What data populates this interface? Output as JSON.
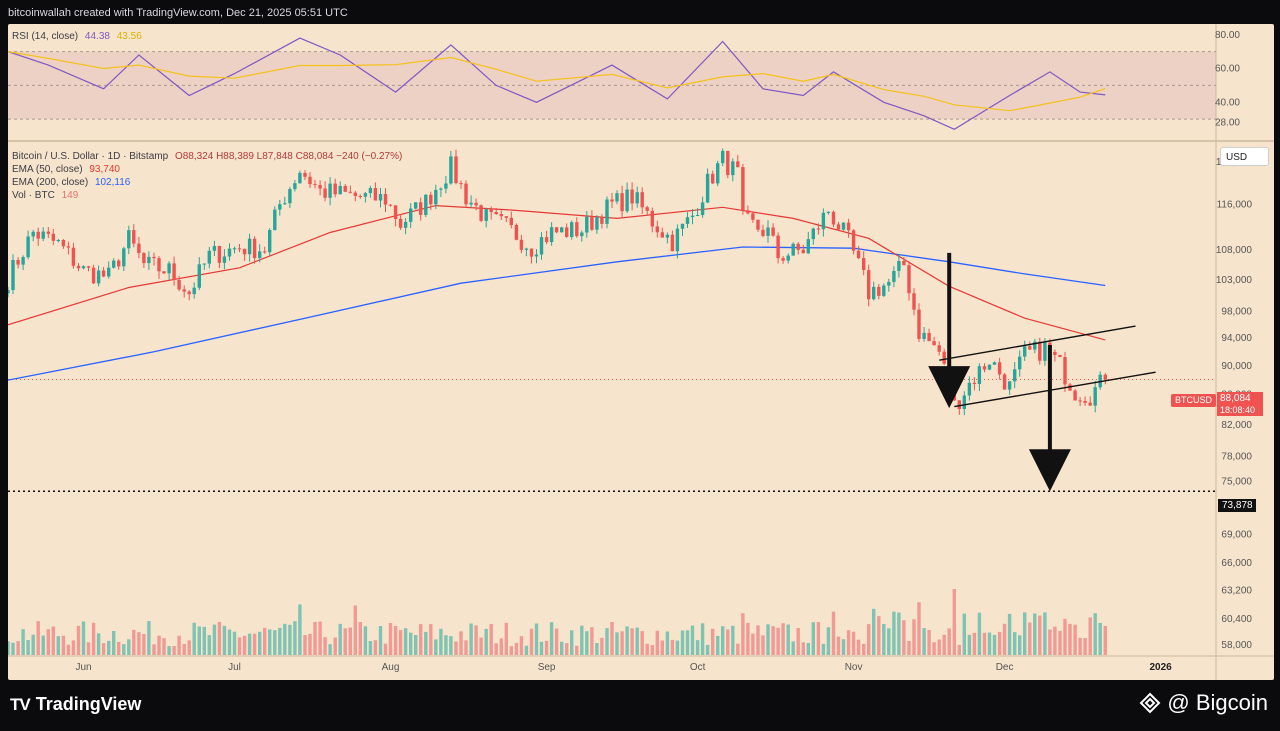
{
  "header": {
    "credit": "bitcoinwallah created with TradingView.com, Dec 21, 2025 05:51 UTC"
  },
  "rsi_legend": {
    "label": "RSI (14, close)",
    "value": "44.38",
    "ma": "43.56"
  },
  "main_legend": {
    "title": "Bitcoin / U.S. Dollar · 1D · Bitstamp",
    "ohlc": "O88,324  H88,389  L87,848  C88,084  −240 (−0.27%)",
    "ema50_label": "EMA (50, close)",
    "ema50_value": "93,740",
    "ema200_label": "EMA (200, close)",
    "ema200_value": "102,116",
    "vol_label": "Vol · BTC",
    "vol_value": "149"
  },
  "currency_button": "USD",
  "price_badge": {
    "symbol": "BTCUSD",
    "price": "88,084",
    "countdown": "18:08:40"
  },
  "target_badge": "73,878",
  "footer": {
    "platform": "TradingView",
    "source": "@ Bigcoin"
  },
  "colors": {
    "up": "#26a69a",
    "down": "#ef5350",
    "ema50": "#e53935",
    "ema200": "#2962ff",
    "rsi": "#7e57c2",
    "rsi_ma": "#f4c21b",
    "bg": "#f7e4cc"
  },
  "chart_data": {
    "type": "candlestick",
    "symbol": "BTCUSD",
    "interval": "1D",
    "x_range": [
      "2025-05-17",
      "2026-01-12"
    ],
    "price_axis_ticks": [
      124000,
      116000,
      108000,
      103000,
      98000,
      94000,
      90000,
      86000,
      82000,
      78000,
      75000,
      72000,
      69000,
      66000,
      63200,
      60400,
      58000
    ],
    "rsi_axis_ticks": [
      80,
      60,
      40,
      28
    ],
    "rsi_bands": [
      30,
      50,
      70
    ],
    "time_axis": [
      "Jun",
      "Jul",
      "Aug",
      "Sep",
      "Oct",
      "Nov",
      "Dec",
      "2026"
    ],
    "log_scale": true,
    "target_level": 73878,
    "last_close": 88084,
    "ema50_last": 93740,
    "ema200_last": 102116,
    "rsi_last": 44.38,
    "rsi_ma_last": 43.56,
    "price_path": [
      [
        "2025-05-17",
        103200
      ],
      [
        "2025-05-22",
        111000
      ],
      [
        "2025-05-27",
        109000
      ],
      [
        "2025-06-01",
        104500
      ],
      [
        "2025-06-06",
        103500
      ],
      [
        "2025-06-10",
        109800
      ],
      [
        "2025-06-13",
        105500
      ],
      [
        "2025-06-18",
        104500
      ],
      [
        "2025-06-22",
        101000
      ],
      [
        "2025-06-26",
        107000
      ],
      [
        "2025-07-02",
        108500
      ],
      [
        "2025-07-07",
        108200
      ],
      [
        "2025-07-10",
        116000
      ],
      [
        "2025-07-14",
        122500
      ],
      [
        "2025-07-18",
        118500
      ],
      [
        "2025-07-25",
        117500
      ],
      [
        "2025-07-31",
        117000
      ],
      [
        "2025-08-03",
        112500
      ],
      [
        "2025-08-08",
        116500
      ],
      [
        "2025-08-13",
        123000
      ],
      [
        "2025-08-16",
        117500
      ],
      [
        "2025-08-20",
        113500
      ],
      [
        "2025-08-24",
        112000
      ],
      [
        "2025-08-29",
        108500
      ],
      [
        "2025-09-02",
        111000
      ],
      [
        "2025-09-08",
        111500
      ],
      [
        "2025-09-14",
        116000
      ],
      [
        "2025-09-18",
        117500
      ],
      [
        "2025-09-22",
        113000
      ],
      [
        "2025-09-26",
        109500
      ],
      [
        "2025-09-30",
        114000
      ],
      [
        "2025-10-03",
        120000
      ],
      [
        "2025-10-06",
        124500
      ],
      [
        "2025-10-09",
        121500
      ],
      [
        "2025-10-10",
        113000
      ],
      [
        "2025-10-15",
        111000
      ],
      [
        "2025-10-17",
        107000
      ],
      [
        "2025-10-22",
        108000
      ],
      [
        "2025-10-27",
        115000
      ],
      [
        "2025-10-31",
        109500
      ],
      [
        "2025-11-04",
        101000
      ],
      [
        "2025-11-08",
        102500
      ],
      [
        "2025-11-11",
        105500
      ],
      [
        "2025-11-14",
        95000
      ],
      [
        "2025-11-18",
        92000
      ],
      [
        "2025-11-21",
        84500
      ],
      [
        "2025-11-24",
        87500
      ],
      [
        "2025-11-28",
        91000
      ],
      [
        "2025-12-02",
        87000
      ],
      [
        "2025-12-05",
        91500
      ],
      [
        "2025-12-09",
        92500
      ],
      [
        "2025-12-12",
        90000
      ],
      [
        "2025-12-15",
        86500
      ],
      [
        "2025-12-18",
        86000
      ],
      [
        "2025-12-21",
        88084
      ]
    ],
    "ema50_path": [
      [
        "2025-05-17",
        96000
      ],
      [
        "2025-06-10",
        101800
      ],
      [
        "2025-07-02",
        105000
      ],
      [
        "2025-07-20",
        111000
      ],
      [
        "2025-08-10",
        115800
      ],
      [
        "2025-08-25",
        115000
      ],
      [
        "2025-09-15",
        113500
      ],
      [
        "2025-10-06",
        115500
      ],
      [
        "2025-10-20",
        113500
      ],
      [
        "2025-11-04",
        110000
      ],
      [
        "2025-11-20",
        102000
      ],
      [
        "2025-12-05",
        97000
      ],
      [
        "2025-12-21",
        93740
      ]
    ],
    "ema200_path": [
      [
        "2025-05-17",
        88000
      ],
      [
        "2025-06-15",
        92000
      ],
      [
        "2025-07-15",
        97000
      ],
      [
        "2025-08-15",
        102500
      ],
      [
        "2025-09-15",
        106000
      ],
      [
        "2025-10-10",
        108500
      ],
      [
        "2025-11-01",
        108300
      ],
      [
        "2025-11-20",
        106000
      ],
      [
        "2025-12-05",
        104000
      ],
      [
        "2025-12-21",
        102116
      ]
    ],
    "rsi_path": [
      [
        "2025-05-17",
        70
      ],
      [
        "2025-05-25",
        62
      ],
      [
        "2025-06-05",
        48
      ],
      [
        "2025-06-12",
        68
      ],
      [
        "2025-06-22",
        44
      ],
      [
        "2025-07-01",
        57
      ],
      [
        "2025-07-14",
        78
      ],
      [
        "2025-07-22",
        68
      ],
      [
        "2025-08-02",
        46
      ],
      [
        "2025-08-13",
        74
      ],
      [
        "2025-08-22",
        50
      ],
      [
        "2025-08-30",
        40
      ],
      [
        "2025-09-14",
        62
      ],
      [
        "2025-09-25",
        42
      ],
      [
        "2025-10-06",
        76
      ],
      [
        "2025-10-14",
        48
      ],
      [
        "2025-10-22",
        44
      ],
      [
        "2025-10-28",
        58
      ],
      [
        "2025-11-07",
        40
      ],
      [
        "2025-11-15",
        32
      ],
      [
        "2025-11-21",
        24
      ],
      [
        "2025-12-02",
        44
      ],
      [
        "2025-12-10",
        58
      ],
      [
        "2025-12-16",
        46
      ],
      [
        "2025-12-21",
        44.38
      ]
    ],
    "volume_spikes": [
      [
        "2025-07-14",
        4.6
      ],
      [
        "2025-07-25",
        4.5
      ],
      [
        "2025-11-21",
        6.0
      ],
      [
        "2025-11-14",
        4.8
      ],
      [
        "2025-11-05",
        4.2
      ],
      [
        "2025-10-10",
        3.8
      ]
    ],
    "annotations": [
      {
        "type": "arrow-down",
        "from": [
          "2025-11-20",
          107500
        ],
        "to": [
          "2025-11-20",
          84200
        ]
      },
      {
        "type": "arrow-down",
        "from": [
          "2025-12-10",
          93000
        ],
        "to": [
          "2025-12-10",
          73878
        ]
      },
      {
        "type": "channel-line",
        "from": [
          "2025-11-18",
          90800
        ],
        "to": [
          "2025-12-27",
          95800
        ]
      },
      {
        "type": "channel-line",
        "from": [
          "2025-11-21",
          84400
        ],
        "to": [
          "2025-12-31",
          89100
        ]
      }
    ]
  }
}
